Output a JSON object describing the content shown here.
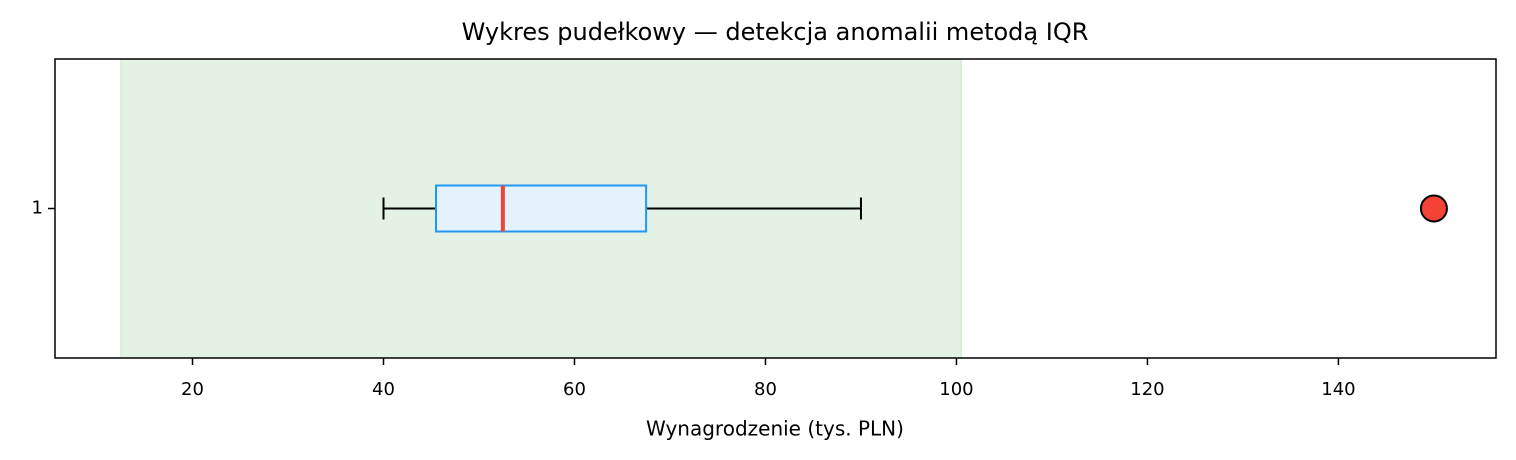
{
  "chart_data": {
    "type": "box",
    "title": "Wykres pudełkowy — detekcja anomalii metodą IQR",
    "xlabel": "Wynagrodzenie (tys. PLN)",
    "categories": [
      "1"
    ],
    "boxes": [
      {
        "whisker_low": 40,
        "q1": 45.5,
        "median": 52.5,
        "q3": 67.5,
        "whisker_high": 90,
        "outliers": [
          150
        ]
      }
    ],
    "fences": [
      12.5,
      100.5
    ],
    "xlim": [
      5.6,
      156.5
    ],
    "xticks": [
      20,
      40,
      60,
      80,
      100,
      120,
      140
    ],
    "colors": {
      "box_fill": "#e3f2fd",
      "box_edge": "#2196f3",
      "median": "#f44336",
      "outlier": "#f44336",
      "fence_band": "#c8e6c9",
      "whisker": "#000000"
    }
  }
}
